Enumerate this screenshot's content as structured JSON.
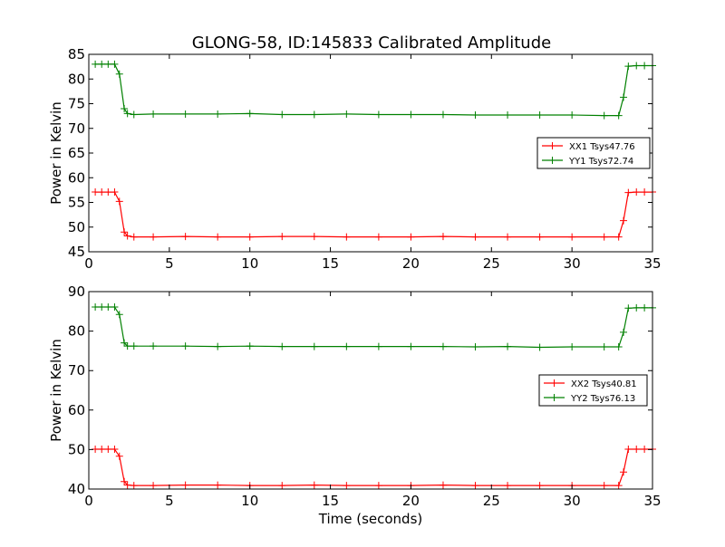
{
  "figure": {
    "title": "GLONG-58, ID:145833 Calibrated Amplitude"
  },
  "chart_data": [
    {
      "type": "line",
      "title": "GLONG-58, ID:145833 Calibrated Amplitude",
      "xlabel": "",
      "ylabel": "Power in Kelvin",
      "xlim": [
        0,
        35
      ],
      "ylim": [
        45,
        85
      ],
      "xticks": [
        0,
        5,
        10,
        15,
        20,
        25,
        30,
        35
      ],
      "yticks": [
        45,
        50,
        55,
        60,
        65,
        70,
        75,
        80,
        85
      ],
      "grid": false,
      "legend_position": "right",
      "series": [
        {
          "name": "XX1 Tsys47.76",
          "color": "#ff0000",
          "marker": "plus",
          "x": [
            0.4,
            0.8,
            1.2,
            1.6,
            1.9,
            2.2,
            2.4,
            2.8,
            4,
            6,
            8,
            10,
            12,
            14,
            16,
            18,
            20,
            22,
            24,
            26,
            28,
            30,
            32,
            32.9,
            33.2,
            33.5,
            34,
            34.5,
            35
          ],
          "y": [
            57.1,
            57.1,
            57.1,
            57.1,
            55.2,
            49.0,
            48.2,
            48.0,
            48.0,
            48.1,
            48.0,
            48.0,
            48.1,
            48.1,
            48.0,
            48.0,
            48.0,
            48.1,
            48.0,
            48.0,
            48.0,
            48.0,
            48.0,
            48.0,
            51.3,
            57.0,
            57.1,
            57.1,
            57.1
          ]
        },
        {
          "name": "YY1 Tsys72.74",
          "color": "#008000",
          "marker": "plus",
          "x": [
            0.4,
            0.8,
            1.2,
            1.6,
            1.9,
            2.2,
            2.4,
            2.8,
            4,
            6,
            8,
            10,
            12,
            14,
            16,
            18,
            20,
            22,
            24,
            26,
            28,
            30,
            32,
            32.9,
            33.2,
            33.5,
            34,
            34.5,
            35
          ],
          "y": [
            83.0,
            83.0,
            83.0,
            83.0,
            81.0,
            74.0,
            73.0,
            72.8,
            72.9,
            72.9,
            72.9,
            73.0,
            72.8,
            72.8,
            72.9,
            72.8,
            72.8,
            72.8,
            72.7,
            72.7,
            72.7,
            72.7,
            72.6,
            72.6,
            76.3,
            82.6,
            82.7,
            82.7,
            82.7
          ]
        }
      ]
    },
    {
      "type": "line",
      "xlabel": "Time (seconds)",
      "ylabel": "Power in Kelvin",
      "xlim": [
        0,
        35
      ],
      "ylim": [
        40,
        90
      ],
      "xticks": [
        0,
        5,
        10,
        15,
        20,
        25,
        30,
        35
      ],
      "yticks": [
        40,
        50,
        60,
        70,
        80,
        90
      ],
      "grid": false,
      "legend_position": "right",
      "series": [
        {
          "name": "XX2 Tsys40.81",
          "color": "#ff0000",
          "marker": "plus",
          "x": [
            0.4,
            0.8,
            1.2,
            1.6,
            1.9,
            2.2,
            2.4,
            2.8,
            4,
            6,
            8,
            10,
            12,
            14,
            16,
            18,
            20,
            22,
            24,
            26,
            28,
            30,
            32,
            32.9,
            33.2,
            33.5,
            34,
            34.5,
            35
          ],
          "y": [
            50.1,
            50.1,
            50.1,
            50.1,
            48.3,
            41.9,
            41.0,
            40.9,
            40.9,
            41.0,
            41.0,
            40.9,
            40.9,
            41.0,
            40.9,
            40.9,
            40.9,
            41.0,
            40.9,
            40.9,
            40.9,
            40.9,
            40.9,
            40.9,
            44.3,
            50.1,
            50.1,
            50.1,
            50.1
          ]
        },
        {
          "name": "YY2 Tsys76.13",
          "color": "#008000",
          "marker": "plus",
          "x": [
            0.4,
            0.8,
            1.2,
            1.6,
            1.9,
            2.2,
            2.4,
            2.8,
            4,
            6,
            8,
            10,
            12,
            14,
            16,
            18,
            20,
            22,
            24,
            26,
            28,
            30,
            32,
            32.9,
            33.2,
            33.5,
            34,
            34.5,
            35
          ],
          "y": [
            86.1,
            86.1,
            86.1,
            86.1,
            84.2,
            77.0,
            76.2,
            76.2,
            76.2,
            76.2,
            76.1,
            76.2,
            76.1,
            76.1,
            76.1,
            76.1,
            76.1,
            76.1,
            76.0,
            76.1,
            75.9,
            76.0,
            76.0,
            76.0,
            79.7,
            85.8,
            85.9,
            85.9,
            85.9
          ]
        }
      ]
    }
  ]
}
